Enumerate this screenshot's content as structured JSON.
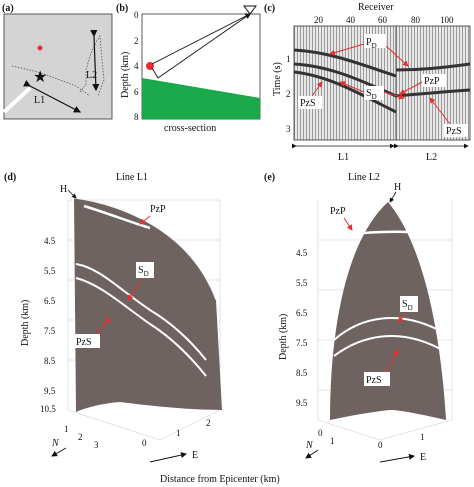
{
  "panels": {
    "a": {
      "label": "(a)",
      "line_labels": [
        "L1",
        "L2"
      ],
      "colors": {
        "background": "#d4d4d4",
        "marker": "#e53030",
        "ground": "#ffffff"
      }
    },
    "b": {
      "label": "(b)",
      "ylabel": "Depth (km)",
      "yticks": [
        "0",
        "2",
        "4",
        "6",
        "8"
      ],
      "xlabel": "cross-section",
      "colors": {
        "layer": "#1aa84a",
        "source": "#e53030"
      }
    },
    "c": {
      "label": "(c)",
      "top_axis_label": "Receiver",
      "xticks": [
        "20",
        "40",
        "60",
        "80",
        "100"
      ],
      "ylabel": "Time (s)",
      "yticks": [
        "1",
        "2",
        "3"
      ],
      "phases": {
        "pd": "P",
        "pd_sub": "D",
        "pzp": "PzP",
        "sd": "S",
        "sd_sub": "D",
        "pzs_left": "PzS",
        "pzs_right": "PzS"
      },
      "segments": [
        "L1",
        "L2"
      ]
    },
    "d": {
      "label": "(d)",
      "title": "Line L1",
      "top_marker": "H",
      "ylabel": "Depth (km)",
      "yticks": [
        "4.5",
        "5.5",
        "6.5",
        "7.5",
        "8.5",
        "9.5",
        "10.5"
      ],
      "n_ticks": [
        "0",
        "1",
        "2",
        "3"
      ],
      "e_ticks": [
        "0",
        "1",
        "2"
      ],
      "axis_n": "N",
      "axis_e": "E",
      "phases": {
        "pzp": "PzP",
        "sd": "S",
        "sd_sub": "D",
        "pzs": "PzS"
      }
    },
    "e": {
      "label": "(e)",
      "title": "Line L2",
      "top_marker": "H",
      "ylabel": "Depth (km)",
      "yticks": [
        "4.5",
        "5.5",
        "6.5",
        "7.5",
        "8.5",
        "9.5"
      ],
      "n_ticks": [
        "0",
        "1"
      ],
      "e_ticks": [
        "0",
        "1"
      ],
      "axis_n": "N",
      "axis_e": "E",
      "phases": {
        "pzp": "PzP",
        "sd": "S",
        "sd_sub": "D",
        "pzs": "PzS"
      }
    }
  },
  "shared_xlabel": "Distance from Epicenter (km)",
  "colors": {
    "surface": "#6e6361",
    "arrow": "#e53030",
    "reflector": "#ffffff"
  }
}
